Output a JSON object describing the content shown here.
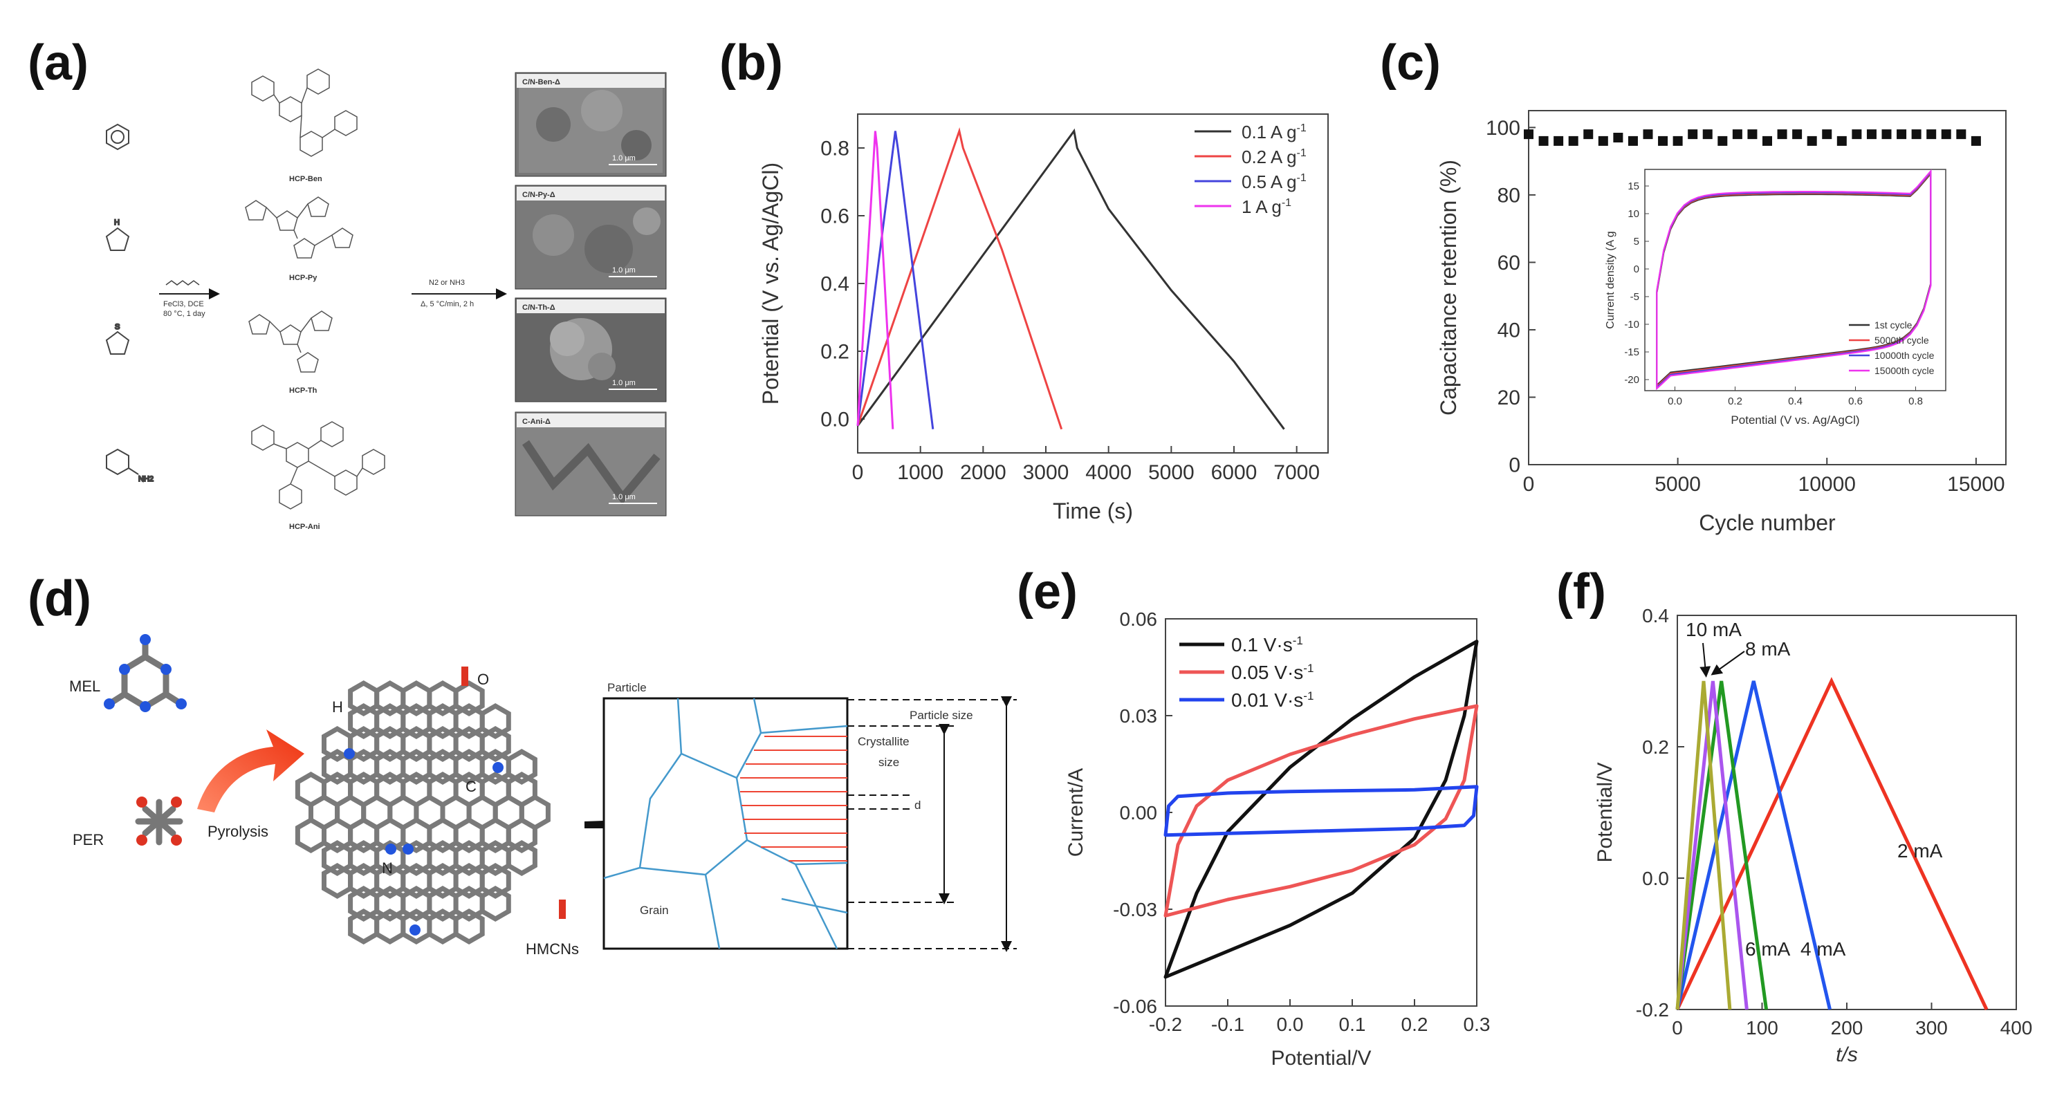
{
  "panel_labels": {
    "a": "(a)",
    "b": "(b)",
    "c": "(c)",
    "d": "(d)",
    "e": "(e)",
    "f": "(f)"
  },
  "scheme_a": {
    "reaction1_line1": "FeCl3, DCE",
    "reaction1_line2": "80 °C, 1 day",
    "reaction2_line1": "N2 or NH3",
    "reaction2_line2": "Δ, 5 °C/min, 2 h",
    "products": [
      "HCP-Ben",
      "HCP-Py",
      "HCP-Th",
      "HCP-Ani"
    ],
    "sem_labels": [
      "C/N-Ben-Δ",
      "C/N-Py-Δ",
      "C/N-Th-Δ",
      "C-Ani-Δ"
    ],
    "scale_bar": "1.0 μm"
  },
  "scheme_d": {
    "mel": "MEL",
    "per": "PER",
    "pyrolysis": "Pyrolysis",
    "atoms": {
      "h": "H",
      "o": "O",
      "c": "C",
      "n": "N"
    },
    "hmcns": "HMCNs",
    "particle": "Particle",
    "grain": "Grain",
    "particle_size": "Particle size",
    "crystallite_1": "Crystallite",
    "crystallite_2": "size",
    "d": "d"
  },
  "chart_data": [
    {
      "panel": "b",
      "type": "line",
      "xlabel": "Time (s)",
      "ylabel": "Potential (V vs. Ag/AgCl)",
      "xlim": [
        0,
        7500
      ],
      "ylim": [
        -0.1,
        0.9
      ],
      "xticks": [
        "0",
        "1000",
        "2000",
        "3000",
        "4000",
        "5000",
        "6000",
        "7000"
      ],
      "yticks": [
        "0.0",
        "0.2",
        "0.4",
        "0.6",
        "0.8"
      ],
      "legend": [
        "0.1 A g",
        "0.2 A g",
        "0.5 A g",
        "1 A g"
      ],
      "legend_sup": "-1",
      "series": [
        {
          "name": "0.1 A g-1",
          "color": "#333333",
          "points": [
            [
              0,
              -0.02
            ],
            [
              3450,
              0.85
            ],
            [
              3500,
              0.8
            ],
            [
              4000,
              0.62
            ],
            [
              5000,
              0.38
            ],
            [
              6000,
              0.17
            ],
            [
              6800,
              -0.03
            ]
          ]
        },
        {
          "name": "0.2 A g-1",
          "color": "#ee4444",
          "points": [
            [
              0,
              -0.02
            ],
            [
              1620,
              0.85
            ],
            [
              1680,
              0.8
            ],
            [
              2300,
              0.5
            ],
            [
              3250,
              -0.03
            ]
          ]
        },
        {
          "name": "0.5 A g-1",
          "color": "#4444dd",
          "points": [
            [
              0,
              -0.02
            ],
            [
              600,
              0.85
            ],
            [
              640,
              0.8
            ],
            [
              1200,
              -0.03
            ]
          ]
        },
        {
          "name": "1 A g-1",
          "color": "#ee33ee",
          "points": [
            [
              0,
              -0.02
            ],
            [
              280,
              0.85
            ],
            [
              310,
              0.8
            ],
            [
              560,
              -0.03
            ]
          ]
        }
      ]
    },
    {
      "panel": "c",
      "type": "scatter",
      "xlabel": "Cycle number",
      "ylabel": "Capacitance retention (%)",
      "xlim": [
        0,
        16000
      ],
      "ylim": [
        0,
        105
      ],
      "xticks": [
        "0",
        "5000",
        "10000",
        "15000"
      ],
      "yticks": [
        "0",
        "20",
        "40",
        "60",
        "80",
        "100"
      ],
      "points": [
        [
          0,
          98
        ],
        [
          500,
          96
        ],
        [
          1000,
          96
        ],
        [
          1500,
          96
        ],
        [
          2000,
          98
        ],
        [
          2500,
          96
        ],
        [
          3000,
          97
        ],
        [
          3500,
          96
        ],
        [
          4000,
          98
        ],
        [
          4500,
          96
        ],
        [
          5000,
          96
        ],
        [
          5500,
          98
        ],
        [
          6000,
          98
        ],
        [
          6500,
          96
        ],
        [
          7000,
          98
        ],
        [
          7500,
          98
        ],
        [
          8000,
          96
        ],
        [
          8500,
          98
        ],
        [
          9000,
          98
        ],
        [
          9500,
          96
        ],
        [
          10000,
          98
        ],
        [
          10500,
          96
        ],
        [
          11000,
          98
        ],
        [
          11500,
          98
        ],
        [
          12000,
          98
        ],
        [
          12500,
          98
        ],
        [
          13000,
          98
        ],
        [
          13500,
          98
        ],
        [
          14000,
          98
        ],
        [
          14500,
          98
        ],
        [
          15000,
          96
        ]
      ],
      "inset": {
        "xlabel": "Potential (V vs. Ag/AgCl)",
        "ylabel": "Current density (A g",
        "xlim": [
          -0.1,
          0.9
        ],
        "ylim": [
          -22,
          18
        ],
        "xticks": [
          "0.0",
          "0.2",
          "0.4",
          "0.6",
          "0.8"
        ],
        "yticks": [
          "-20",
          "-15",
          "-10",
          "-5",
          "0",
          "5",
          "10",
          "15"
        ],
        "legend": [
          "1st cycle",
          "5000th cycle",
          "10000th cycle",
          "15000th cycle"
        ],
        "colors": [
          "#333333",
          "#ee4444",
          "#4444dd",
          "#ee33ee"
        ]
      }
    },
    {
      "panel": "e",
      "type": "line",
      "xlabel": "Potential/V",
      "ylabel": "Current/A",
      "xlim": [
        -0.2,
        0.3
      ],
      "ylim": [
        -0.06,
        0.06
      ],
      "xticks": [
        "-0.2",
        "-0.1",
        "0.0",
        "0.1",
        "0.2",
        "0.3"
      ],
      "yticks": [
        "-0.06",
        "-0.03",
        "0.00",
        "0.03",
        "0.06"
      ],
      "legend": [
        "0.1 V·s",
        "0.05 V·s",
        "0.01 V·s"
      ],
      "legend_sup": "-1",
      "colors": [
        "#111111",
        "#ee5555",
        "#2244ee"
      ],
      "loops": [
        {
          "name": "0.1 V·s-1",
          "upper": [
            [
              -0.2,
              -0.051
            ],
            [
              -0.15,
              -0.025
            ],
            [
              -0.1,
              -0.006
            ],
            [
              0.0,
              0.014
            ],
            [
              0.1,
              0.029
            ],
            [
              0.2,
              0.042
            ],
            [
              0.3,
              0.053
            ]
          ],
          "lower": [
            [
              0.3,
              0.053
            ],
            [
              0.28,
              0.03
            ],
            [
              0.25,
              0.01
            ],
            [
              0.2,
              -0.008
            ],
            [
              0.1,
              -0.025
            ],
            [
              0.0,
              -0.035
            ],
            [
              -0.1,
              -0.043
            ],
            [
              -0.2,
              -0.051
            ]
          ]
        },
        {
          "name": "0.05 V·s-1",
          "upper": [
            [
              -0.2,
              -0.032
            ],
            [
              -0.18,
              -0.01
            ],
            [
              -0.15,
              0.002
            ],
            [
              -0.1,
              0.01
            ],
            [
              0.0,
              0.018
            ],
            [
              0.1,
              0.024
            ],
            [
              0.2,
              0.029
            ],
            [
              0.3,
              0.033
            ]
          ],
          "lower": [
            [
              0.3,
              0.033
            ],
            [
              0.28,
              0.01
            ],
            [
              0.25,
              -0.002
            ],
            [
              0.2,
              -0.01
            ],
            [
              0.1,
              -0.018
            ],
            [
              0.0,
              -0.023
            ],
            [
              -0.1,
              -0.027
            ],
            [
              -0.2,
              -0.032
            ]
          ]
        },
        {
          "name": "0.01 V·s-1",
          "upper": [
            [
              -0.2,
              -0.007
            ],
            [
              -0.195,
              0.002
            ],
            [
              -0.18,
              0.005
            ],
            [
              -0.1,
              0.006
            ],
            [
              0.0,
              0.0065
            ],
            [
              0.2,
              0.007
            ],
            [
              0.3,
              0.008
            ]
          ],
          "lower": [
            [
              0.3,
              0.008
            ],
            [
              0.295,
              -0.001
            ],
            [
              0.28,
              -0.004
            ],
            [
              0.2,
              -0.005
            ],
            [
              0.0,
              -0.006
            ],
            [
              -0.1,
              -0.0065
            ],
            [
              -0.2,
              -0.007
            ]
          ]
        }
      ]
    },
    {
      "panel": "f",
      "type": "line",
      "xlabel": "t/s",
      "ylabel": "Potential/V",
      "xlim": [
        0,
        400
      ],
      "ylim": [
        -0.2,
        0.4
      ],
      "xticks": [
        "0",
        "100",
        "200",
        "300",
        "400"
      ],
      "yticks": [
        "-0.2",
        "0.0",
        "0.2",
        "0.4"
      ],
      "annotations": [
        "10 mA",
        "8 mA",
        "6 mA",
        "4 mA",
        "2 mA"
      ],
      "series": [
        {
          "name": "2 mA",
          "color": "#ee3322",
          "points": [
            [
              0,
              -0.2
            ],
            [
              182,
              0.3
            ],
            [
              365,
              -0.2
            ]
          ]
        },
        {
          "name": "4 mA",
          "color": "#2255ee",
          "points": [
            [
              0,
              -0.2
            ],
            [
              90,
              0.3
            ],
            [
              180,
              -0.2
            ]
          ]
        },
        {
          "name": "6 mA",
          "color": "#229922",
          "points": [
            [
              0,
              -0.2
            ],
            [
              52,
              0.3
            ],
            [
              105,
              -0.2
            ]
          ]
        },
        {
          "name": "8 mA",
          "color": "#aa55ee",
          "points": [
            [
              0,
              -0.2
            ],
            [
              42,
              0.3
            ],
            [
              82,
              -0.2
            ]
          ]
        },
        {
          "name": "10 mA",
          "color": "#aaaa33",
          "points": [
            [
              0,
              -0.2
            ],
            [
              31,
              0.3
            ],
            [
              62,
              -0.2
            ]
          ]
        }
      ]
    }
  ]
}
